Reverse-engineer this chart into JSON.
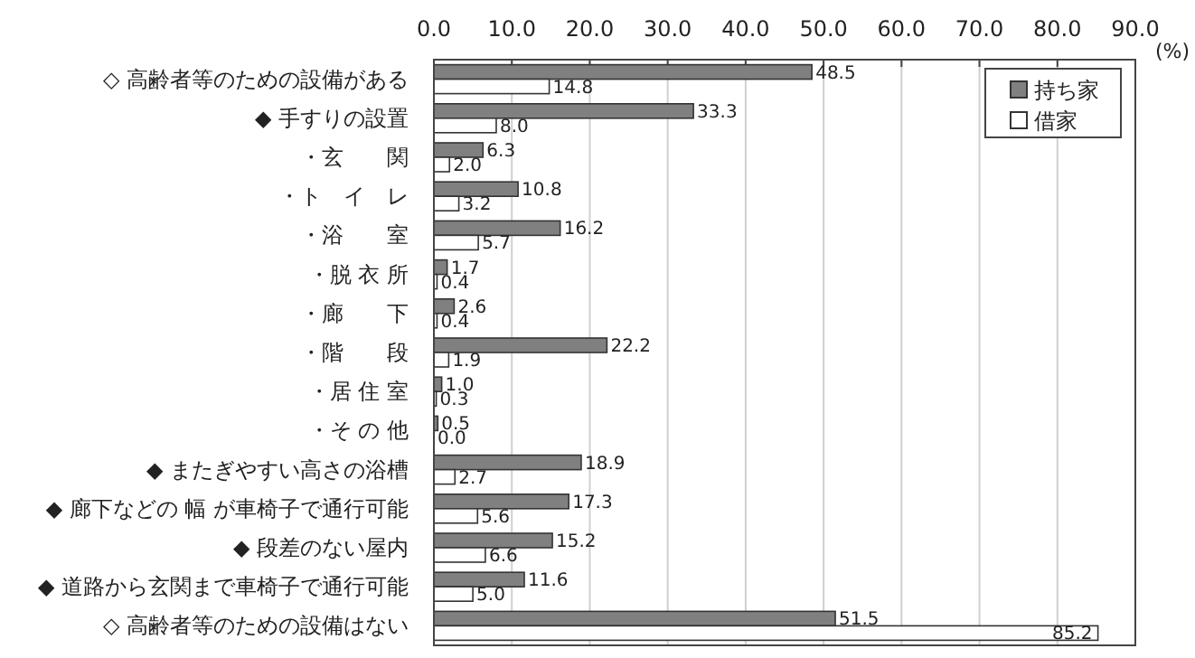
{
  "chart_data": {
    "type": "bar",
    "orientation": "horizontal",
    "xlabel": "(%)",
    "categories": [
      "◇ 高齢者等のための設備がある",
      "◆ 手すりの設置",
      "・玄　　関",
      "・ト　イ　レ",
      "・浴　　室",
      "・脱 衣 所",
      "・廊　　下",
      "・階　　段",
      "・居 住 室",
      "・そ の 他",
      "◆ またぎやすい高さの浴槽",
      "◆ 廊下などの 幅 が車椅子で通行可能",
      "◆ 段差のない屋内",
      "◆ 道路から玄関まで車椅子で通行可能",
      "◇ 高齢者等のための設備はない"
    ],
    "series": [
      {
        "name": "持ち家",
        "color": "#808080",
        "values": [
          48.5,
          33.3,
          6.3,
          10.8,
          16.2,
          1.7,
          2.6,
          22.2,
          1.0,
          0.5,
          18.9,
          17.3,
          15.2,
          11.6,
          51.5
        ],
        "value_labels": [
          "48.5",
          "33.3",
          "6.3",
          "10.8",
          "16.2",
          "1.7",
          "2.6",
          "22.2",
          "1.0",
          "0.5",
          "18.9",
          "17.3",
          "15.2",
          "11.6",
          "51.5"
        ]
      },
      {
        "name": "借家",
        "color": "#ffffff",
        "values": [
          14.8,
          8.0,
          2.0,
          3.2,
          5.7,
          0.4,
          0.4,
          1.9,
          0.3,
          0.0,
          2.7,
          5.6,
          6.6,
          5.0,
          85.2
        ],
        "value_labels": [
          "14.8",
          "8.0",
          "2.0",
          "3.2",
          "5.7",
          "0.4",
          "0.4",
          "1.9",
          "0.3",
          "0.0",
          "2.7",
          "5.6",
          "6.6",
          "5.0",
          "85.2"
        ]
      }
    ],
    "xlim": [
      0,
      90
    ],
    "xticks": [
      {
        "value": 0,
        "label": "0.0"
      },
      {
        "value": 10,
        "label": "10.0"
      },
      {
        "value": 20,
        "label": "20.0"
      },
      {
        "value": 30,
        "label": "30.0"
      },
      {
        "value": 40,
        "label": "40.0"
      },
      {
        "value": 50,
        "label": "50.0"
      },
      {
        "value": 60,
        "label": "60.0"
      },
      {
        "value": 70,
        "label": "70.0"
      },
      {
        "value": 80,
        "label": "80.0"
      },
      {
        "value": 90,
        "label": "90.0"
      }
    ],
    "grid": "x",
    "legend": "top right"
  }
}
